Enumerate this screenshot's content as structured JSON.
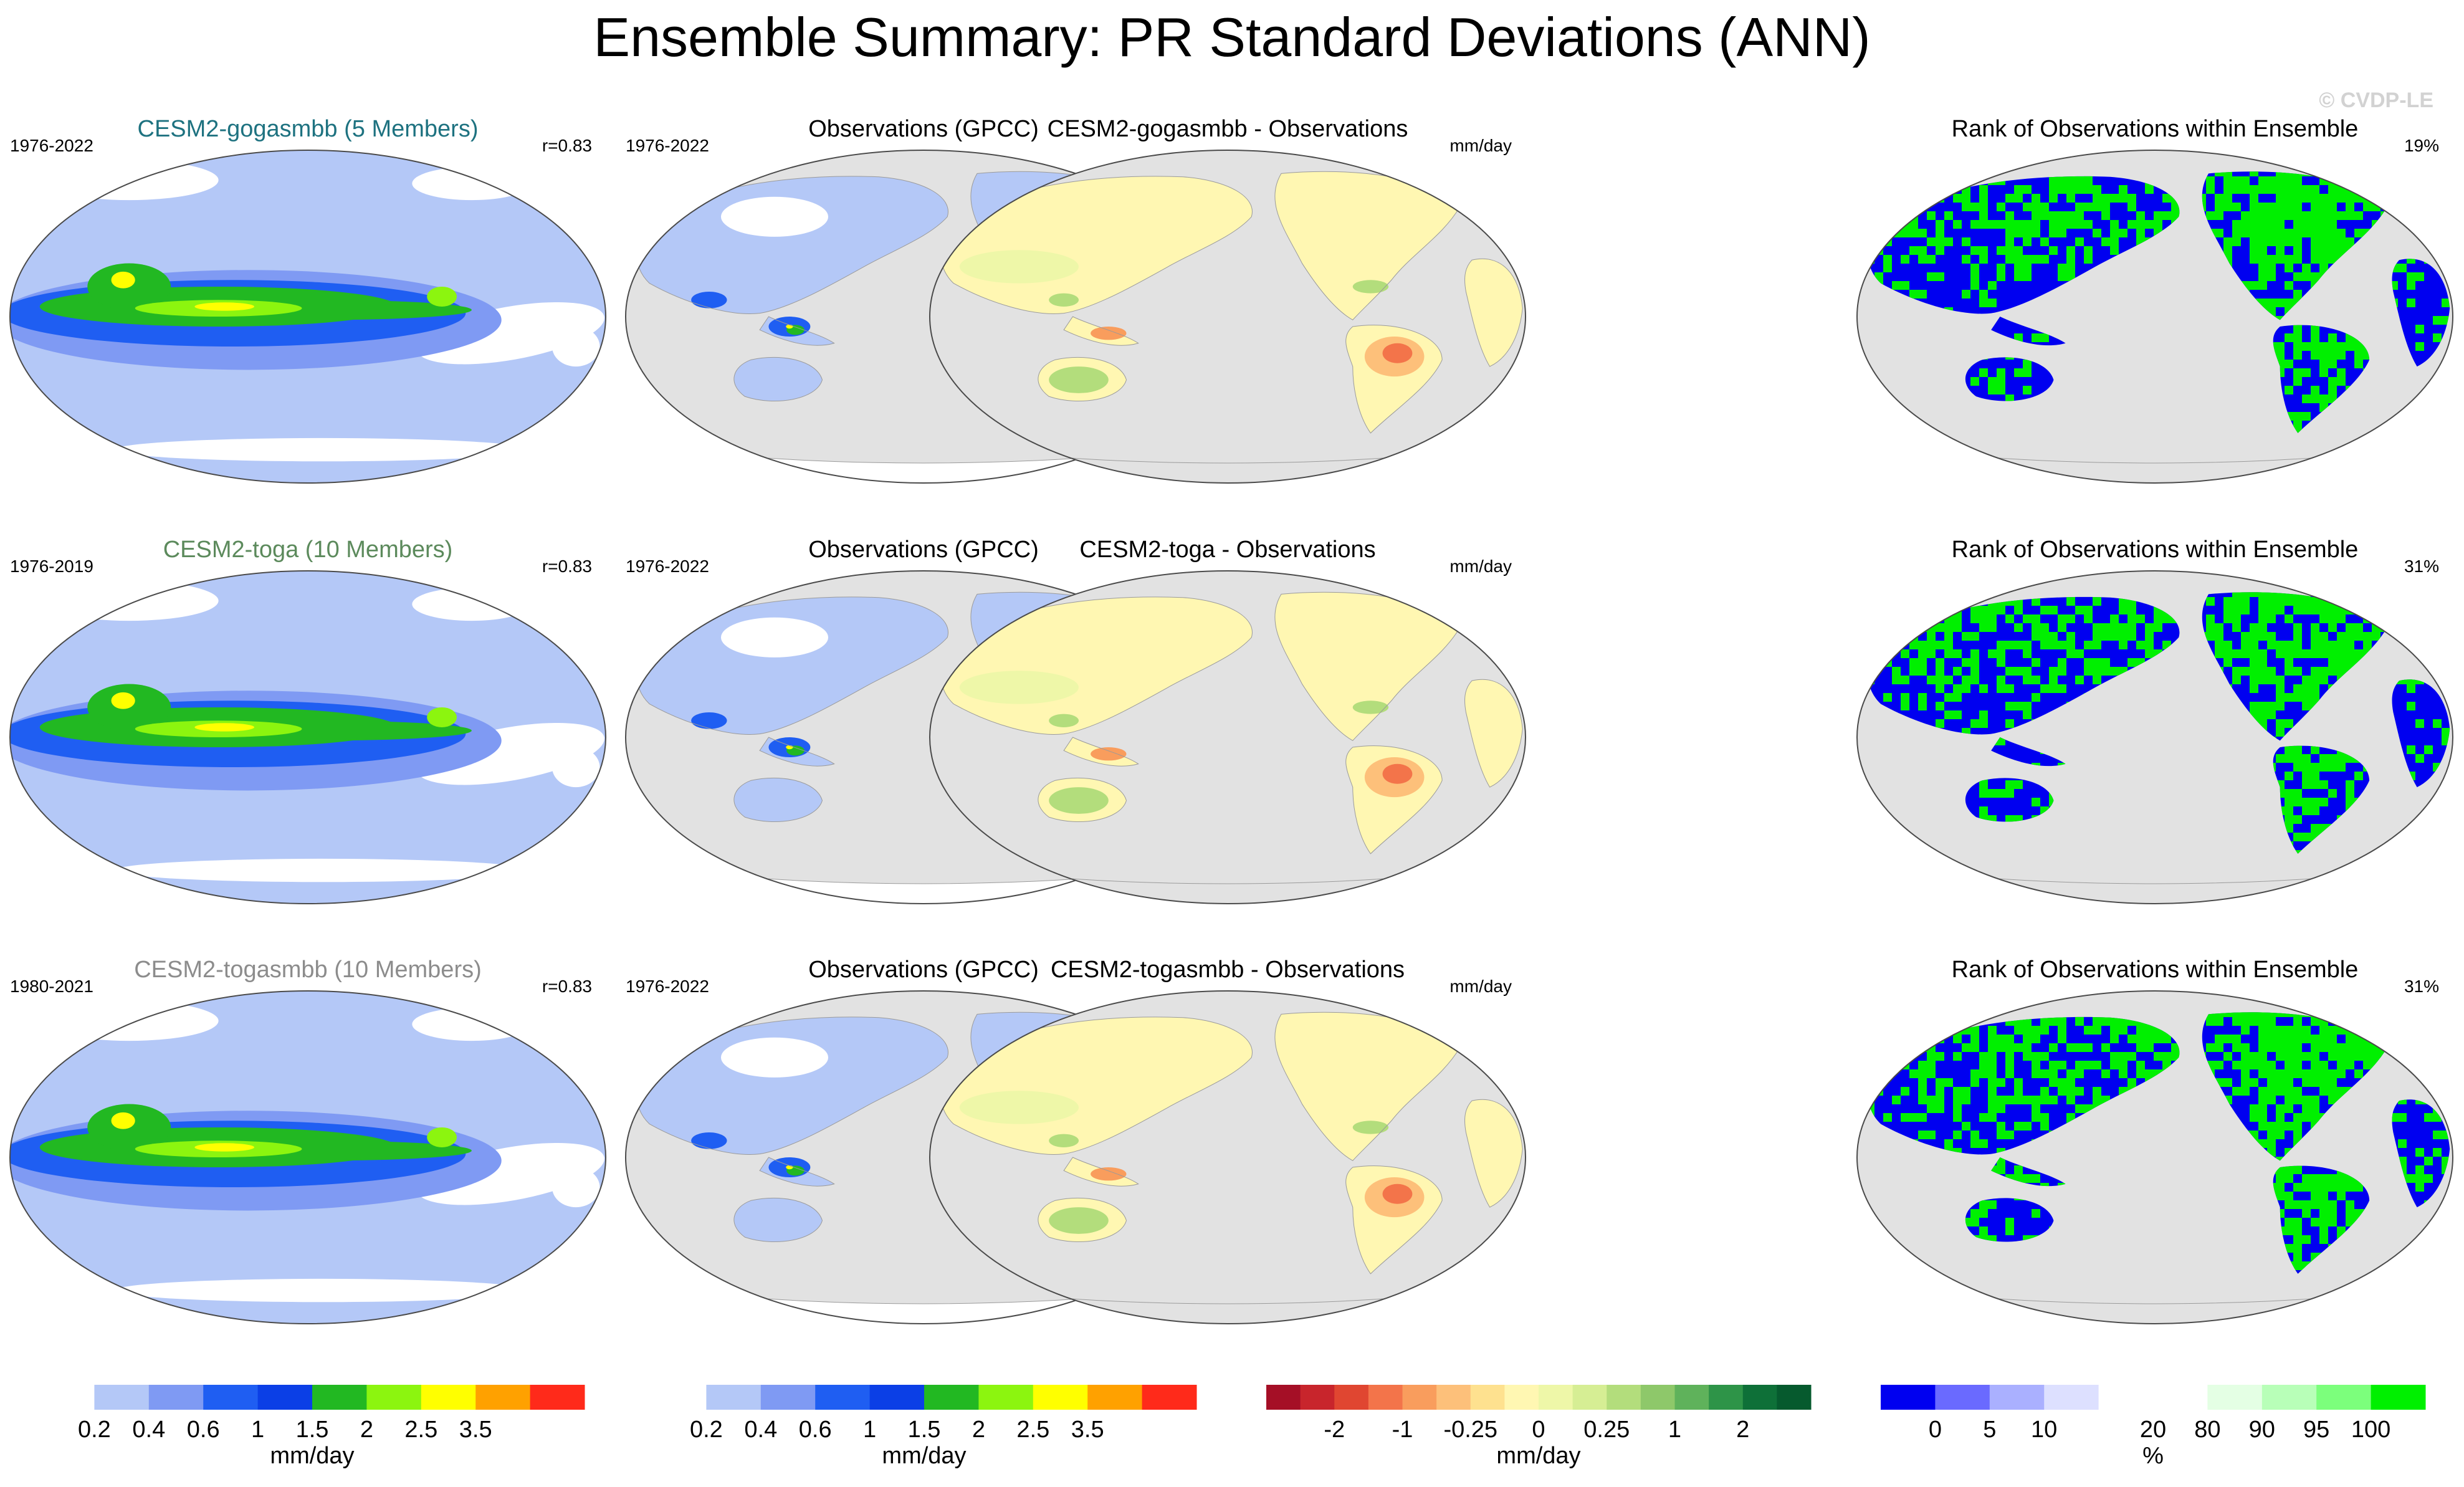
{
  "page": {
    "title": "Ensemble Summary: PR Standard Deviations (ANN)",
    "copyright": "© CVDP-LE"
  },
  "colors": {
    "ocean_gray": "#e2e2e2",
    "land_coast": "#9a9a9a",
    "title_teal": "#1e7280",
    "title_green": "#5c8a5c",
    "title_gray": "#8c8c8c"
  },
  "chart_data": [
    {
      "type": "heatmap",
      "row": 0,
      "col": 0,
      "kind": "std",
      "title": "CESM2-gogasmbb (5 Members)",
      "title_color": "#1e7280",
      "left_label": "1976-2022",
      "right_label": "r=0.83"
    },
    {
      "type": "heatmap",
      "row": 0,
      "col": 1,
      "kind": "obs",
      "title": "Observations (GPCC)",
      "left_label": "1976-2022",
      "right_label": ""
    },
    {
      "type": "heatmap",
      "row": 0,
      "col": 2,
      "kind": "diff",
      "title": "CESM2-gogasmbb - Observations",
      "left_label": "",
      "right_label": "mm/day"
    },
    {
      "type": "heatmap",
      "row": 0,
      "col": 3,
      "kind": "rank",
      "title": "Rank of Observations within Ensemble",
      "left_label": "",
      "right_label": "19%"
    },
    {
      "type": "heatmap",
      "row": 1,
      "col": 0,
      "kind": "std",
      "title": "CESM2-toga (10 Members)",
      "title_color": "#5c8a5c",
      "left_label": "1976-2019",
      "right_label": "r=0.83"
    },
    {
      "type": "heatmap",
      "row": 1,
      "col": 1,
      "kind": "obs",
      "title": "Observations (GPCC)",
      "left_label": "1976-2022",
      "right_label": ""
    },
    {
      "type": "heatmap",
      "row": 1,
      "col": 2,
      "kind": "diff",
      "title": "CESM2-toga - Observations",
      "left_label": "",
      "right_label": "mm/day"
    },
    {
      "type": "heatmap",
      "row": 1,
      "col": 3,
      "kind": "rank",
      "title": "Rank of Observations within Ensemble",
      "left_label": "",
      "right_label": "31%"
    },
    {
      "type": "heatmap",
      "row": 2,
      "col": 0,
      "kind": "std",
      "title": "CESM2-togasmbb (10 Members)",
      "title_color": "#8c8c8c",
      "left_label": "1980-2021",
      "right_label": "r=0.83"
    },
    {
      "type": "heatmap",
      "row": 2,
      "col": 1,
      "kind": "obs",
      "title": "Observations (GPCC)",
      "left_label": "1976-2022",
      "right_label": ""
    },
    {
      "type": "heatmap",
      "row": 2,
      "col": 2,
      "kind": "diff",
      "title": "CESM2-togasmbb - Observations",
      "left_label": "",
      "right_label": "mm/day"
    },
    {
      "type": "heatmap",
      "row": 2,
      "col": 3,
      "kind": "rank",
      "title": "Rank of Observations within Ensemble",
      "left_label": "",
      "right_label": "31%"
    }
  ],
  "colorbars": [
    {
      "id": "std-model",
      "unit": "mm/day",
      "colors": [
        "#ffffff",
        "#b4c8f7",
        "#7f9af3",
        "#1f5ef2",
        "#0b3fe6",
        "#22b822",
        "#8cf50f",
        "#ffff00",
        "#ffa100",
        "#ff2a1a"
      ],
      "labels": [
        "0.2",
        "0.4",
        "0.6",
        "1",
        "1.5",
        "2",
        "2.5",
        "3.5"
      ]
    },
    {
      "id": "std-obs",
      "unit": "mm/day",
      "colors": [
        "#ffffff",
        "#b4c8f7",
        "#7f9af3",
        "#1f5ef2",
        "#0b3fe6",
        "#22b822",
        "#8cf50f",
        "#ffff00",
        "#ffa100",
        "#ff2a1a"
      ],
      "labels": [
        "0.2",
        "0.4",
        "0.6",
        "1",
        "1.5",
        "2",
        "2.5",
        "3.5"
      ]
    },
    {
      "id": "diff",
      "unit": "mm/day",
      "colors": [
        "#a50f26",
        "#c8252c",
        "#e04631",
        "#f3744a",
        "#f99d5d",
        "#fdc07a",
        "#fee18f",
        "#fff7b2",
        "#eef7a8",
        "#d6ee94",
        "#b3dd7c",
        "#8ec86a",
        "#5fb25b",
        "#2e9448",
        "#0e7038",
        "#065a2e"
      ],
      "labels": [
        "-2",
        "-1",
        "-0.25",
        "0",
        "0.25",
        "1",
        "2"
      ]
    },
    {
      "id": "rank",
      "unit": "%",
      "colors": [
        "#0000f0",
        "#6a6aff",
        "#aab0ff",
        "#dde0ff",
        "#ffffff",
        "#ffffff",
        "#e4ffe4",
        "#b8ffb8",
        "#7cff7c",
        "#00f000"
      ],
      "labels": [
        "0",
        "5",
        "10",
        "20",
        "80",
        "90",
        "95",
        "100"
      ]
    }
  ]
}
